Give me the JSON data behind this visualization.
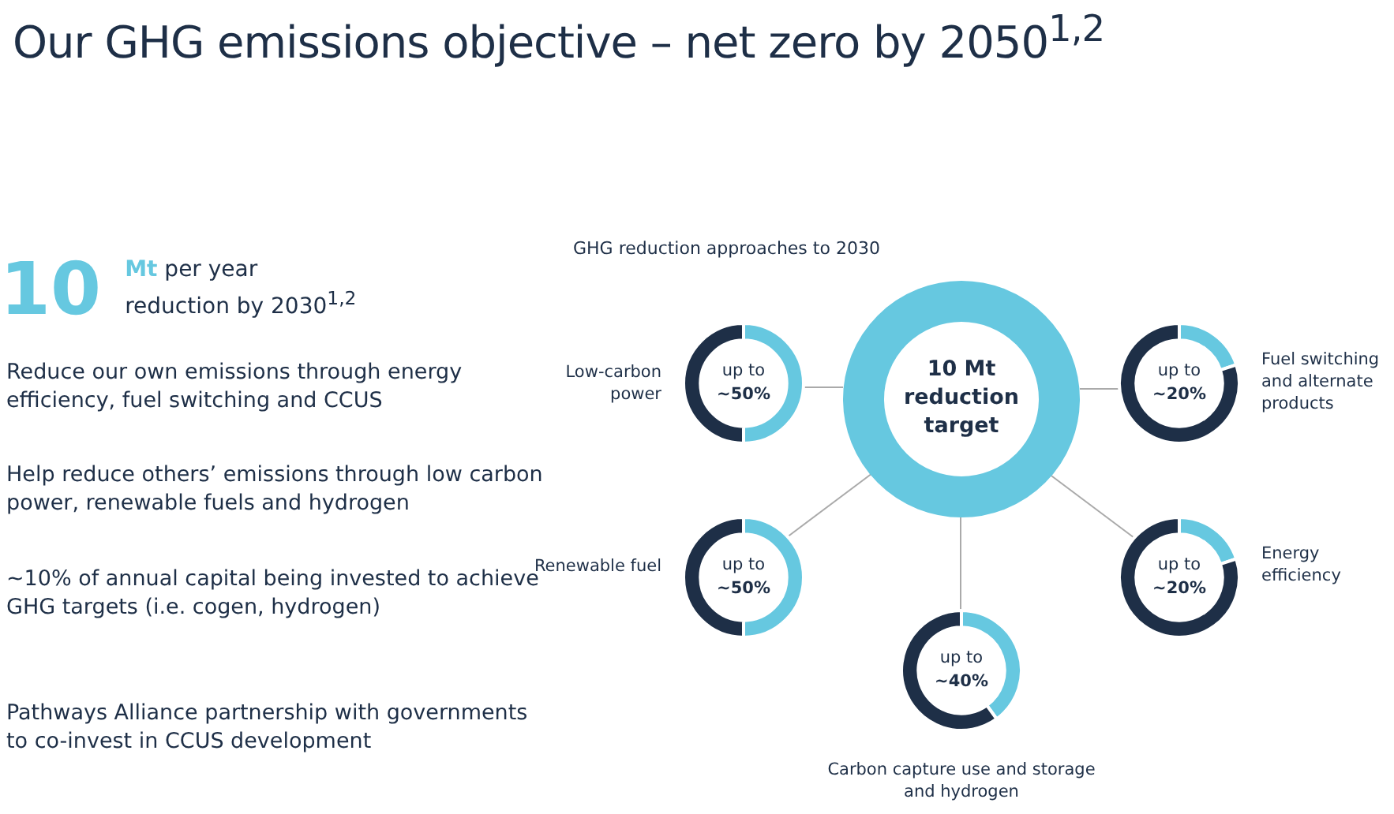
{
  "chart_data": [
    {
      "type": "other",
      "title": "Our GHG emissions objective – net zero by 2050$^{1,2}$",
      "subtitle": "10 Mt per year reduction by 2030$^{1,2}$",
      "annotations": [
        "Reduce our own emissions through energy efficiency, fuel switching and CCUS",
        "Help reduce others’ emissions through low carbon power, renewable fuels and hydrogen",
        "~10% of annual capital being invested to achieve GHG targets (i.e. cogen, hydrogen)",
        "Pathways Alliance partnership with governments to co-invest in CCUS development"
      ]
    },
    {
      "type": "other",
      "title": "GHG reduction approaches to 2030",
      "annotations": [
        "10 Mt reduction target"
      ]
    },
    {
      "type": "donut",
      "title": "Low-carbon power",
      "categories": [
        null,
        null
      ],
      "values": [
        50,
        50
      ],
      "colors": [
        "#66c8e0",
        "#1e2f47"
      ],
      "annotations": [
        "up to ~50%"
      ],
      "legend": false
    },
    {
      "type": "donut",
      "title": "Fuel switching and alternate products",
      "categories": [
        null,
        null
      ],
      "values": [
        20,
        80
      ],
      "colors": [
        "#66c8e0",
        "#1e2f47"
      ],
      "annotations": [
        "up to ~20%"
      ],
      "legend": false
    },
    {
      "type": "donut",
      "title": "Renewable fuel",
      "categories": [
        null,
        null
      ],
      "values": [
        50,
        50
      ],
      "colors": [
        "#66c8e0",
        "#1e2f47"
      ],
      "annotations": [
        "up to ~50%"
      ],
      "legend": false
    },
    {
      "type": "donut",
      "title": "Energy efficiency",
      "categories": [
        null,
        null
      ],
      "values": [
        20,
        80
      ],
      "colors": [
        "#66c8e0",
        "#1e2f47"
      ],
      "annotations": [
        "up to ~20%"
      ],
      "legend": false
    },
    {
      "type": "donut",
      "title": "Carbon capture use and storage and hydrogen",
      "categories": [
        null,
        null
      ],
      "values": [
        40,
        60
      ],
      "colors": [
        "#66c8e0",
        "#1e2f47"
      ],
      "annotations": [
        "up to ~40%"
      ],
      "legend": false
    }
  ]
}
